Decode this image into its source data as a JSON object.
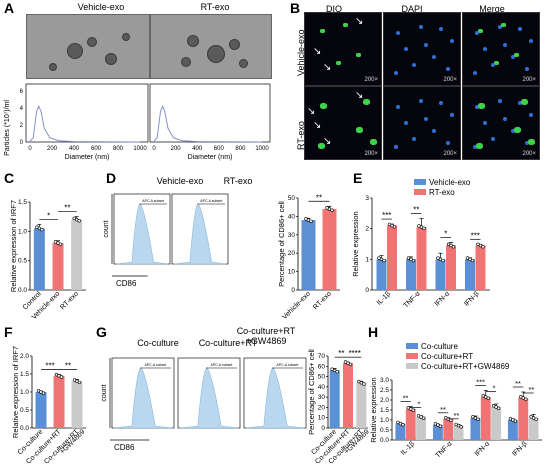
{
  "panels": {
    "A": "A",
    "B": "B",
    "C": "C",
    "D": "D",
    "E": "E",
    "F": "F",
    "G": "G",
    "H": "H"
  },
  "panelA": {
    "titles": [
      "Vehicle-exo",
      "RT-exo"
    ],
    "ylabel": "Particles (*10⁷)/ml",
    "xlabel_left": "Diameter (nm)",
    "xlabel_right": "Diameter (nm)",
    "yticks": [
      "0",
      "2",
      "4",
      "6"
    ],
    "xticks": [
      "0",
      "200",
      "400",
      "600",
      "800",
      "1000"
    ]
  },
  "panelB": {
    "col_titles": [
      "DIO",
      "DAPI",
      "Merge"
    ],
    "row_labels": [
      "Vehicle-exo",
      "RT-exo"
    ],
    "magnification": "200×"
  },
  "panelD": {
    "flow_titles": [
      "Vehicle-exo",
      "RT-exo"
    ],
    "gate_text": "APC-A subset",
    "count_label": "count",
    "x_label": "CD86"
  },
  "panelG": {
    "flow_titles": [
      "Co-culture",
      "Co-culture+RT",
      "Co-culture+RT\n+GW4869"
    ],
    "gate_text": "APC-A subset",
    "count_label": "count",
    "x_label": "CD86"
  },
  "legendE": [
    "Vehicle-exo",
    "RT-exo"
  ],
  "legendH": [
    "Co-culture",
    "Co-culture+RT",
    "Co-culture+RT+GW4869"
  ],
  "colors": {
    "blue": "#5b8fd6",
    "red": "#f07474",
    "gray": "#c9c9c9",
    "flow": "#b9d8f0"
  },
  "chart_data": [
    {
      "id": "C",
      "type": "bar",
      "ylabel": "Relative expression of IRF7",
      "categories": [
        "Control",
        "Vehicle-exo",
        "RT-exo"
      ],
      "values": [
        1.05,
        0.8,
        1.2
      ],
      "errors": [
        0.07,
        0.04,
        0.05
      ],
      "colors": [
        "blue",
        "red",
        "gray"
      ],
      "ylim": [
        0,
        1.5
      ],
      "yticks": [
        0,
        0.5,
        1.0,
        1.5
      ],
      "ytick_labels": [
        "0.0",
        "0.5",
        "1.0",
        "1.5"
      ],
      "sig": [
        {
          "from": 0,
          "to": 1,
          "text": "*"
        },
        {
          "from": 1,
          "to": 2,
          "text": "**"
        }
      ]
    },
    {
      "id": "D",
      "type": "bar",
      "ylabel": "Percentage of CD86+ cell",
      "categories": [
        "Vehicle-exo",
        "RT-exo"
      ],
      "values": [
        38,
        44
      ],
      "errors": [
        1,
        1.5
      ],
      "colors": [
        "blue",
        "red"
      ],
      "ylim": [
        0,
        50
      ],
      "yticks": [
        0,
        10,
        20,
        30,
        40,
        50
      ],
      "ytick_labels": [
        "0",
        "10",
        "20",
        "30",
        "40",
        "50"
      ],
      "sig": [
        {
          "from": 0,
          "to": 1,
          "text": "**"
        }
      ]
    },
    {
      "id": "E",
      "type": "grouped-bar",
      "ylabel": "Relative expression",
      "categories": [
        "IL-1β",
        "TNF-α",
        "IFN-α",
        "IFN-β"
      ],
      "series": [
        {
          "name": "Vehicle-exo",
          "color": "blue",
          "values": [
            1.0,
            1.0,
            1.0,
            1.0
          ],
          "errors": [
            0.12,
            0.08,
            0.2,
            0.05
          ]
        },
        {
          "name": "RT-exo",
          "color": "red",
          "values": [
            2.1,
            2.05,
            1.45,
            1.45
          ],
          "errors": [
            0.05,
            0.28,
            0.1,
            0.04
          ]
        }
      ],
      "ylim": [
        0,
        3
      ],
      "yticks": [
        0,
        1,
        2,
        3
      ],
      "ytick_labels": [
        "0",
        "1",
        "2",
        "3"
      ],
      "sig": [
        "***",
        "**",
        "*",
        "***"
      ]
    },
    {
      "id": "F",
      "type": "bar",
      "ylabel": "Relative expression of IRF7",
      "categories": [
        "Co-culture",
        "Co-culture+RT",
        "Co-culture+RT\n+GW4869"
      ],
      "values": [
        1.0,
        1.45,
        1.3
      ],
      "errors": [
        0.02,
        0.04,
        0.05
      ],
      "colors": [
        "blue",
        "red",
        "gray"
      ],
      "ylim": [
        0,
        2.0
      ],
      "yticks": [
        0,
        0.5,
        1.0,
        1.5,
        2.0
      ],
      "ytick_labels": [
        "0.0",
        "0.5",
        "1.0",
        "1.5",
        "2.0"
      ],
      "sig": [
        {
          "from": 0,
          "to": 1,
          "text": "***"
        },
        {
          "from": 1,
          "to": 2,
          "text": "**"
        }
      ]
    },
    {
      "id": "G",
      "type": "bar",
      "ylabel": "Percentage of CD86+ cell",
      "categories": [
        "Co-culture",
        "Co-culture+RT",
        "Co-culture+RT\n+GW4869"
      ],
      "values": [
        56,
        63,
        44
      ],
      "errors": [
        2,
        1,
        1.5
      ],
      "colors": [
        "blue",
        "red",
        "gray"
      ],
      "ylim": [
        0,
        70
      ],
      "yticks": [
        0,
        10,
        20,
        30,
        40,
        50,
        60,
        70
      ],
      "ytick_labels": [
        "0",
        "10",
        "20",
        "30",
        "40",
        "50",
        "60",
        "70"
      ],
      "sig": [
        {
          "from": 0,
          "to": 1,
          "text": "**"
        },
        {
          "from": 1,
          "to": 2,
          "text": "****"
        }
      ]
    },
    {
      "id": "H",
      "type": "grouped-bar",
      "ylabel": "Relative expression",
      "categories": [
        "IL-1β",
        "TNF-α",
        "IFN-α",
        "IFN-β"
      ],
      "series": [
        {
          "name": "Co-culture",
          "color": "blue",
          "values": [
            0.82,
            0.75,
            1.1,
            1.0
          ],
          "errors": [
            0.02,
            0.04,
            0.1,
            0.05
          ]
        },
        {
          "name": "Co-culture+RT",
          "color": "red",
          "values": [
            1.55,
            1.05,
            2.15,
            2.1
          ],
          "errors": [
            0.12,
            0.06,
            0.32,
            0.3
          ]
        },
        {
          "name": "Co-culture+RT+GW4869",
          "color": "gray",
          "values": [
            1.15,
            0.72,
            1.65,
            1.1
          ],
          "errors": [
            0.06,
            0.05,
            0.15,
            0.18
          ]
        }
      ],
      "ylim": [
        0,
        3
      ],
      "yticks": [
        0,
        0.5,
        1.0,
        1.5,
        2.0,
        2.5,
        3.0
      ],
      "ytick_labels": [
        "0.0",
        "0.5",
        "1.0",
        "1.5",
        "2.0",
        "2.5",
        "3.0"
      ],
      "sig": [
        [
          "**",
          "*"
        ],
        [
          "**",
          "**"
        ],
        [
          "***",
          "*"
        ],
        [
          "**",
          "**"
        ]
      ]
    }
  ]
}
